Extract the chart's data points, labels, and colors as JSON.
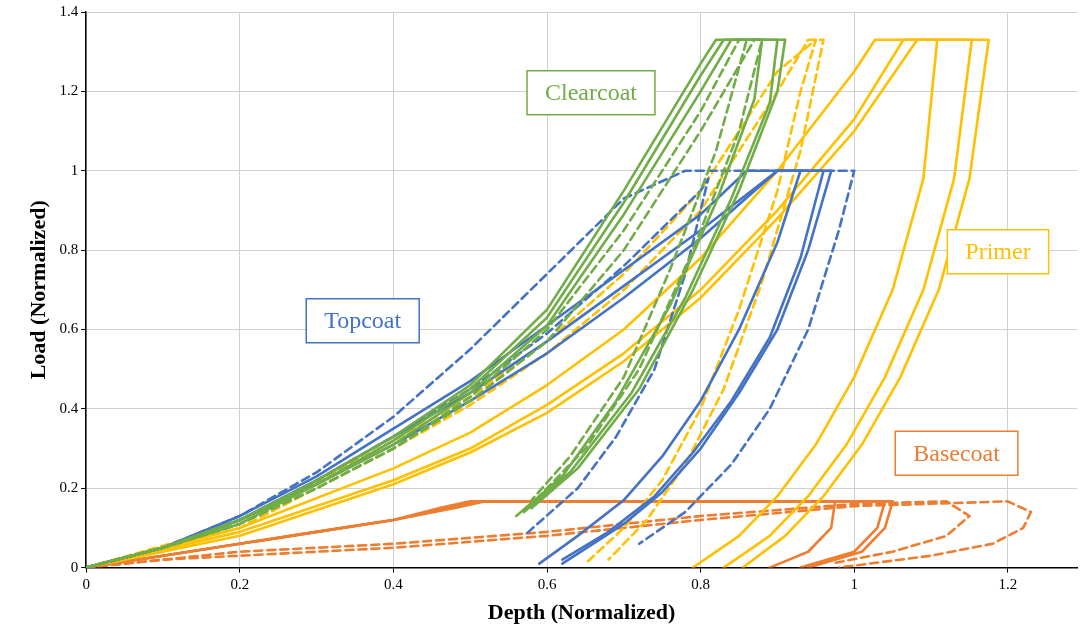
{
  "chart_data": {
    "type": "line",
    "xlabel": "Depth (Normalized)",
    "ylabel": "Load (Normalized)",
    "xlim": [
      0,
      1.29
    ],
    "ylim": [
      0,
      1.4
    ],
    "xticks": [
      0,
      0.2,
      0.4,
      0.6,
      0.8,
      1,
      1.2
    ],
    "yticks": [
      0,
      0.2,
      0.4,
      0.6,
      0.8,
      1,
      1.2,
      1.4
    ],
    "grid": true,
    "legend": false,
    "marker": "none",
    "series": [
      {
        "name": "Clearcoat",
        "color": "#70ad47",
        "line_style": "solid",
        "x": [
          0,
          0.1,
          0.2,
          0.3,
          0.4,
          0.5,
          0.6,
          0.7,
          0.8,
          0.82,
          0.91,
          0.9,
          0.85,
          0.79,
          0.72,
          0.64,
          0.58
        ],
        "values": [
          0,
          0.05,
          0.12,
          0.22,
          0.33,
          0.46,
          0.65,
          0.95,
          1.27,
          1.33,
          1.33,
          1.2,
          0.95,
          0.7,
          0.45,
          0.25,
          0.15
        ]
      },
      {
        "color": "#70ad47",
        "line_style": "solid",
        "x": [
          0,
          0.1,
          0.2,
          0.3,
          0.4,
          0.5,
          0.6,
          0.7,
          0.8,
          0.83,
          0.9,
          0.89,
          0.84,
          0.78,
          0.71,
          0.63,
          0.57
        ],
        "values": [
          0,
          0.05,
          0.11,
          0.21,
          0.32,
          0.45,
          0.63,
          0.92,
          1.24,
          1.33,
          1.33,
          1.17,
          0.93,
          0.68,
          0.44,
          0.24,
          0.14
        ]
      },
      {
        "color": "#70ad47",
        "line_style": "solid",
        "x": [
          0,
          0.1,
          0.2,
          0.3,
          0.4,
          0.5,
          0.6,
          0.7,
          0.8,
          0.84,
          0.88,
          0.87,
          0.82,
          0.76,
          0.69,
          0.62,
          0.56
        ],
        "values": [
          0,
          0.05,
          0.12,
          0.21,
          0.31,
          0.44,
          0.61,
          0.89,
          1.2,
          1.33,
          1.33,
          1.18,
          0.92,
          0.66,
          0.42,
          0.23,
          0.13
        ]
      },
      {
        "color": "#70ad47",
        "line_style": "dashed",
        "x": [
          0,
          0.1,
          0.2,
          0.3,
          0.4,
          0.5,
          0.6,
          0.7,
          0.8,
          0.87,
          0.88,
          0.85,
          0.79,
          0.72,
          0.65,
          0.57
        ],
        "values": [
          0,
          0.05,
          0.11,
          0.2,
          0.3,
          0.42,
          0.57,
          0.8,
          1.1,
          1.33,
          1.33,
          1.1,
          0.8,
          0.5,
          0.3,
          0.14
        ]
      },
      {
        "color": "#70ad47",
        "line_style": "dashed",
        "x": [
          0,
          0.1,
          0.2,
          0.3,
          0.4,
          0.5,
          0.6,
          0.7,
          0.8,
          0.85,
          0.86,
          0.82,
          0.76,
          0.7,
          0.63,
          0.58
        ],
        "values": [
          0,
          0.05,
          0.11,
          0.2,
          0.3,
          0.43,
          0.6,
          0.85,
          1.15,
          1.33,
          1.33,
          1.05,
          0.75,
          0.48,
          0.28,
          0.17
        ]
      },
      {
        "name": "Topcoat",
        "color": "#4472c4",
        "line_style": "solid",
        "x": [
          0,
          0.1,
          0.2,
          0.3,
          0.4,
          0.5,
          0.6,
          0.7,
          0.8,
          0.86,
          0.93,
          0.9,
          0.85,
          0.8,
          0.75,
          0.7,
          0.64,
          0.59
        ],
        "values": [
          0,
          0.05,
          0.13,
          0.23,
          0.35,
          0.47,
          0.61,
          0.75,
          0.89,
          1,
          1,
          0.82,
          0.6,
          0.42,
          0.28,
          0.17,
          0.08,
          0.01
        ]
      },
      {
        "color": "#4472c4",
        "line_style": "solid",
        "x": [
          0,
          0.1,
          0.2,
          0.3,
          0.4,
          0.5,
          0.6,
          0.7,
          0.8,
          0.9,
          0.97,
          0.94,
          0.9,
          0.85,
          0.8,
          0.75,
          0.7,
          0.62
        ],
        "values": [
          0,
          0.05,
          0.12,
          0.22,
          0.33,
          0.44,
          0.57,
          0.71,
          0.85,
          1,
          1,
          0.8,
          0.6,
          0.44,
          0.3,
          0.19,
          0.11,
          0.01
        ]
      },
      {
        "color": "#4472c4",
        "line_style": "solid",
        "x": [
          0,
          0.1,
          0.2,
          0.3,
          0.4,
          0.5,
          0.6,
          0.7,
          0.8,
          0.9,
          0.96,
          0.93,
          0.89,
          0.84,
          0.79,
          0.74,
          0.68,
          0.62
        ],
        "values": [
          0,
          0.05,
          0.12,
          0.21,
          0.31,
          0.42,
          0.54,
          0.68,
          0.83,
          1,
          1,
          0.78,
          0.58,
          0.42,
          0.29,
          0.18,
          0.09,
          0.02
        ]
      },
      {
        "color": "#4472c4",
        "line_style": "dashed",
        "x": [
          0,
          0.1,
          0.2,
          0.3,
          0.4,
          0.5,
          0.6,
          0.7,
          0.78,
          1,
          0.98,
          0.94,
          0.89,
          0.84,
          0.78,
          0.72
        ],
        "values": [
          0,
          0.05,
          0.13,
          0.24,
          0.38,
          0.55,
          0.74,
          0.93,
          1,
          1,
          0.85,
          0.6,
          0.4,
          0.26,
          0.14,
          0.06
        ]
      },
      {
        "color": "#4472c4",
        "line_style": "dashed",
        "x": [
          0,
          0.1,
          0.2,
          0.3,
          0.4,
          0.5,
          0.6,
          0.7,
          0.8,
          0.81,
          0.78,
          0.74,
          0.69,
          0.64,
          0.57
        ],
        "values": [
          0,
          0.05,
          0.12,
          0.22,
          0.33,
          0.45,
          0.59,
          0.76,
          0.95,
          0.98,
          0.74,
          0.5,
          0.33,
          0.2,
          0.08
        ]
      },
      {
        "name": "Primer",
        "color": "#ffc000",
        "line_style": "solid",
        "x": [
          0,
          0.2,
          0.4,
          0.5,
          0.6,
          0.7,
          0.8,
          0.9,
          1,
          1.027,
          1.108,
          1.09,
          1.05,
          1,
          0.95,
          0.9,
          0.85,
          0.79
        ],
        "values": [
          0,
          0.1,
          0.25,
          0.34,
          0.46,
          0.6,
          0.78,
          1,
          1.25,
          1.33,
          1.33,
          0.98,
          0.7,
          0.48,
          0.31,
          0.18,
          0.08,
          0
        ]
      },
      {
        "color": "#ffc000",
        "line_style": "solid",
        "x": [
          0,
          0.2,
          0.4,
          0.5,
          0.6,
          0.7,
          0.8,
          0.9,
          1,
          1.064,
          1.153,
          1.13,
          1.09,
          1.04,
          0.99,
          0.94,
          0.89,
          0.83
        ],
        "values": [
          0,
          0.09,
          0.22,
          0.3,
          0.41,
          0.54,
          0.7,
          0.9,
          1.13,
          1.33,
          1.33,
          0.98,
          0.7,
          0.48,
          0.31,
          0.18,
          0.08,
          0
        ]
      },
      {
        "color": "#ffc000",
        "line_style": "solid",
        "x": [
          0,
          0.2,
          0.4,
          0.5,
          0.6,
          0.7,
          0.8,
          0.9,
          1,
          1.082,
          1.175,
          1.15,
          1.11,
          1.06,
          1.01,
          0.96,
          0.91,
          0.855
        ],
        "values": [
          0,
          0.08,
          0.21,
          0.29,
          0.39,
          0.52,
          0.68,
          0.88,
          1.1,
          1.33,
          1.33,
          0.98,
          0.7,
          0.48,
          0.31,
          0.18,
          0.08,
          0
        ]
      },
      {
        "color": "#ffc000",
        "line_style": "dashed",
        "x": [
          0,
          0.2,
          0.4,
          0.5,
          0.6,
          0.7,
          0.8,
          0.9,
          0.94,
          0.96,
          0.93,
          0.88,
          0.83,
          0.78,
          0.73,
          0.68
        ],
        "values": [
          0,
          0.1,
          0.3,
          0.41,
          0.54,
          0.7,
          0.9,
          1.2,
          1.33,
          1.33,
          1.05,
          0.72,
          0.45,
          0.26,
          0.12,
          0.02
        ]
      },
      {
        "color": "#ffc000",
        "line_style": "dashed",
        "x": [
          0,
          0.2,
          0.4,
          0.5,
          0.6,
          0.7,
          0.8,
          0.9,
          0.95,
          0.93,
          0.9,
          0.85,
          0.8,
          0.75,
          0.7,
          0.65
        ],
        "values": [
          0,
          0.11,
          0.32,
          0.43,
          0.57,
          0.74,
          0.95,
          1.25,
          1.33,
          1.2,
          0.95,
          0.65,
          0.4,
          0.22,
          0.1,
          0.01
        ]
      },
      {
        "name": "Basecoat",
        "color": "#ed7d31",
        "line_style": "solid",
        "x": [
          0,
          0.1,
          0.2,
          0.3,
          0.4,
          0.48,
          0.52,
          0.975,
          0.97,
          0.94,
          0.89
        ],
        "values": [
          0,
          0.03,
          0.06,
          0.09,
          0.12,
          0.15,
          0.167,
          0.167,
          0.1,
          0.04,
          0
        ]
      },
      {
        "color": "#ed7d31",
        "line_style": "solid",
        "x": [
          0,
          0.1,
          0.2,
          0.3,
          0.4,
          0.48,
          0.51,
          1.04,
          1.03,
          1,
          0.93
        ],
        "values": [
          0,
          0.03,
          0.06,
          0.09,
          0.12,
          0.155,
          0.167,
          0.167,
          0.1,
          0.04,
          0
        ]
      },
      {
        "color": "#ed7d31",
        "line_style": "solid",
        "x": [
          0,
          0.1,
          0.2,
          0.3,
          0.4,
          0.46,
          0.5,
          1.05,
          1.04,
          1.01,
          0.94
        ],
        "values": [
          0,
          0.03,
          0.06,
          0.09,
          0.12,
          0.15,
          0.167,
          0.167,
          0.1,
          0.04,
          0
        ]
      },
      {
        "color": "#ed7d31",
        "line_style": "dashed",
        "x": [
          0,
          0.1,
          0.2,
          0.4,
          0.6,
          0.8,
          1,
          1.2,
          1.23,
          1.22,
          1.18,
          1.1,
          0.98
        ],
        "values": [
          0,
          0.02,
          0.03,
          0.05,
          0.08,
          0.12,
          0.155,
          0.167,
          0.14,
          0.1,
          0.06,
          0.03,
          0
        ]
      },
      {
        "color": "#ed7d31",
        "line_style": "dashed",
        "x": [
          0,
          0.1,
          0.2,
          0.4,
          0.6,
          0.8,
          1,
          1.12,
          1.15,
          1.12,
          1.05,
          0.97
        ],
        "values": [
          0,
          0.02,
          0.04,
          0.06,
          0.09,
          0.13,
          0.16,
          0.167,
          0.13,
          0.08,
          0.04,
          0.01
        ]
      }
    ]
  }
}
